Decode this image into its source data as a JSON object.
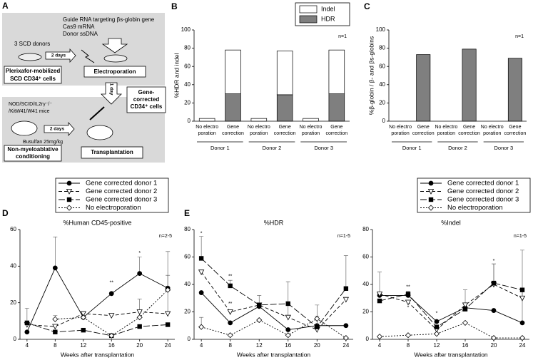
{
  "panel_a": {
    "label": "A",
    "inputs": [
      "Guide RNA targeting βs-globin gene",
      "Cas9 mRNA",
      "Donor ssDNA"
    ],
    "donors": "3 SCD donors",
    "delay_1": "2 days",
    "cells": [
      "Plerixafor-mobilized",
      "SCD CD34⁺ cells"
    ],
    "electroporation": "Electroporation",
    "delay_2": "1 day",
    "corrected": [
      "Gene-",
      "corrected",
      "CD34⁺ cells"
    ],
    "mice": [
      "NOD/SCID/IL2rγ⁻/⁻",
      "/KitW41/W41 mice"
    ],
    "delay_3": "2 days",
    "busulfan": "Busulfan 25mg/kg",
    "conditioning": [
      "Non-myeloablative",
      "conditioning"
    ],
    "transplantation": "Transplantation"
  },
  "chart_data": [
    {
      "type": "bar",
      "panel": "B",
      "stacked": true,
      "ylabel": "%HDR and indel",
      "note": "n=1",
      "legend": "top-right",
      "categories": [
        [
          "No electro",
          "poration"
        ],
        [
          "Gene",
          "correction"
        ],
        [
          "No electro",
          "poration"
        ],
        [
          "Gene",
          "correction"
        ],
        [
          "No electro",
          "poration"
        ],
        [
          "Gene",
          "correction"
        ]
      ],
      "groups": [
        "Donor 1",
        "Donor 2",
        "Donor 3"
      ],
      "series": [
        {
          "name": "HDR",
          "color": "#7f7f7f",
          "values": [
            0,
            30,
            0,
            29,
            0,
            30
          ]
        },
        {
          "name": "Indel",
          "color": "#ffffff",
          "values": [
            3,
            48,
            3,
            48,
            3,
            48
          ]
        }
      ],
      "ylim": [
        0,
        100
      ],
      "yticks": [
        0,
        20,
        40,
        60,
        80,
        100
      ]
    },
    {
      "type": "bar",
      "panel": "C",
      "ylabel": "%β-globin / β- and βs-globins",
      "note": "n=1",
      "categories": [
        [
          "No electro",
          "poration"
        ],
        [
          "Gene",
          "correction"
        ],
        [
          "No electro",
          "poration"
        ],
        [
          "Gene",
          "correction"
        ],
        [
          "No electro",
          "poration"
        ],
        [
          "Gene",
          "correction"
        ]
      ],
      "groups": [
        "Donor 1",
        "Donor 2",
        "Donor 3"
      ],
      "series": [
        {
          "color": "#7f7f7f",
          "values": [
            0,
            73,
            0,
            79,
            0,
            69
          ]
        }
      ],
      "ylim": [
        0,
        100
      ],
      "yticks": [
        0,
        20,
        40,
        60,
        80,
        100
      ]
    },
    {
      "type": "line",
      "panel": "D",
      "title": "%Human CD45-positive",
      "note": "n=2-5",
      "xlabel": "Weeks after transplantation",
      "legend": "top-left",
      "x": [
        4,
        8,
        12,
        16,
        20,
        24
      ],
      "xlim": [
        3,
        25
      ],
      "xticks": [
        4,
        8,
        12,
        16,
        20,
        24
      ],
      "ylim": [
        0,
        60
      ],
      "yticks": [
        0,
        20,
        40,
        60
      ],
      "series": [
        {
          "name": "Gene corrected donor 1",
          "color": "#000000",
          "dash": "solid",
          "marker": "circle",
          "filled": true,
          "values": [
            4,
            39,
            12,
            25,
            36,
            28
          ],
          "errors": [
            null,
            17,
            null,
            null,
            9,
            20
          ]
        },
        {
          "name": "Gene corrected donor 2",
          "color": "#000000",
          "dash": "dashed",
          "marker": "triangle-down",
          "filled": false,
          "values": [
            8,
            7,
            14,
            13,
            15,
            14
          ],
          "errors": [
            null,
            null,
            null,
            null,
            7,
            21
          ]
        },
        {
          "name": "Gene corrected donor 3",
          "color": "#000000",
          "dash": "long-dashed",
          "marker": "square",
          "filled": true,
          "values": [
            9,
            4,
            5,
            2,
            7,
            8
          ],
          "errors": [
            8,
            null,
            null,
            null,
            null,
            null
          ]
        },
        {
          "name": "No electroporation",
          "color": "#000000",
          "dash": "dotted",
          "marker": "diamond",
          "filled": false,
          "values": [
            null,
            11,
            12,
            2,
            12,
            27
          ],
          "errors": [
            null,
            2,
            null,
            null,
            null,
            null
          ]
        }
      ],
      "annotations": [
        {
          "text": "**",
          "x": 16,
          "y": 31
        },
        {
          "text": "*",
          "x": 20,
          "y": 47
        }
      ]
    },
    {
      "type": "line",
      "panel": "E",
      "title": "%HDR",
      "note": "n=1-5",
      "xlabel": "Weeks after transplantation",
      "x": [
        4,
        8,
        12,
        16,
        20,
        24
      ],
      "xlim": [
        3,
        25
      ],
      "xticks": [
        4,
        8,
        12,
        16,
        20,
        24
      ],
      "ylim": [
        0,
        80
      ],
      "yticks": [
        0,
        20,
        40,
        60,
        80
      ],
      "series": [
        {
          "color": "#000000",
          "dash": "solid",
          "marker": "circle",
          "filled": true,
          "values": [
            34,
            12,
            24,
            7,
            10,
            10
          ],
          "errors": [
            null,
            null,
            8,
            null,
            null,
            null
          ]
        },
        {
          "color": "#000000",
          "dash": "dashed",
          "marker": "triangle-down",
          "filled": false,
          "values": [
            49,
            20,
            25,
            16,
            7,
            29
          ],
          "errors": [
            null,
            null,
            null,
            26,
            null,
            null
          ]
        },
        {
          "color": "#000000",
          "dash": "long-dashed",
          "marker": "square",
          "filled": true,
          "values": [
            59,
            39,
            25,
            26,
            9,
            37
          ],
          "errors": [
            16,
            4,
            null,
            null,
            8,
            24
          ]
        },
        {
          "color": "#000000",
          "dash": "dotted",
          "marker": "diamond",
          "filled": false,
          "values": [
            9,
            3,
            14,
            3,
            15,
            1
          ],
          "errors": [
            7,
            null,
            null,
            null,
            10,
            null
          ]
        }
      ],
      "annotations": [
        {
          "text": "*",
          "x": 4,
          "y": 77
        },
        {
          "text": "**",
          "x": 8,
          "y": 46
        },
        {
          "text": "**",
          "x": 8,
          "y": 26
        }
      ]
    },
    {
      "type": "line",
      "title": "%Indel",
      "note": "n=1-5",
      "xlabel": "Weeks after transplantation",
      "legend": "top-right",
      "x": [
        4,
        8,
        12,
        16,
        20,
        24
      ],
      "xlim": [
        3,
        25
      ],
      "xticks": [
        4,
        8,
        12,
        16,
        20,
        24
      ],
      "ylim": [
        0,
        80
      ],
      "yticks": [
        0,
        20,
        40,
        60,
        80
      ],
      "series": [
        {
          "name": "Gene corrected donor 1",
          "color": "#000000",
          "dash": "solid",
          "marker": "circle",
          "filled": true,
          "values": [
            32,
            32,
            13,
            23,
            21,
            12
          ],
          "errors": [
            17,
            null,
            null,
            null,
            null,
            24
          ]
        },
        {
          "name": "Gene corrected donor 2",
          "color": "#000000",
          "dash": "dashed",
          "marker": "triangle-down",
          "filled": false,
          "values": [
            33,
            27,
            7,
            25,
            40,
            30
          ],
          "errors": [
            null,
            null,
            3,
            11,
            15,
            35
          ]
        },
        {
          "name": "Gene corrected donor 3",
          "color": "#000000",
          "dash": "long-dashed",
          "marker": "square",
          "filled": true,
          "values": [
            28,
            33,
            9,
            22,
            41,
            36
          ],
          "errors": [
            null,
            2,
            null,
            null,
            14,
            null
          ]
        },
        {
          "name": "No electroporation",
          "color": "#000000",
          "dash": "dotted",
          "marker": "diamond",
          "filled": false,
          "values": [
            2,
            3,
            4,
            12,
            1,
            1
          ]
        }
      ],
      "annotations": [
        {
          "text": "**",
          "x": 8,
          "y": 38
        },
        {
          "text": "*",
          "x": 8,
          "y": 23
        },
        {
          "text": "*",
          "x": 12,
          "y": 19
        },
        {
          "text": "*",
          "x": 20,
          "y": 57
        }
      ]
    }
  ]
}
